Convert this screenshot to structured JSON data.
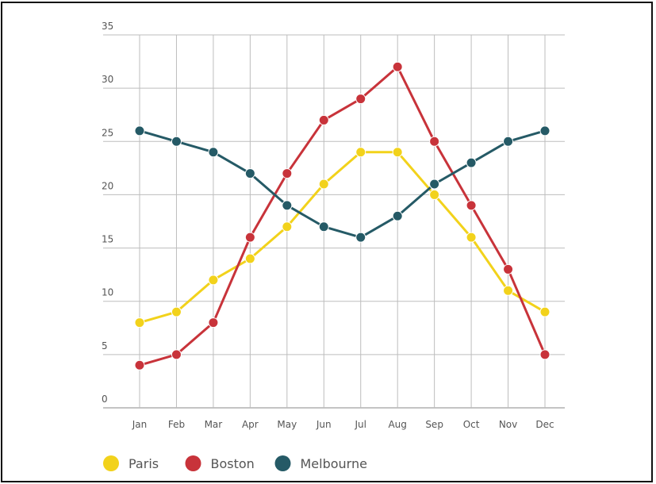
{
  "chart_data": {
    "type": "line",
    "title": "",
    "xlabel": "",
    "ylabel": "",
    "categories": [
      "Jan",
      "Feb",
      "Mar",
      "Apr",
      "May",
      "Jun",
      "Jul",
      "Aug",
      "Sep",
      "Oct",
      "Nov",
      "Dec"
    ],
    "ylim": [
      0,
      35
    ],
    "yticks": [
      "0",
      "5",
      "10",
      "15",
      "20",
      "25",
      "30",
      "35"
    ],
    "grid": true,
    "legend_position": "bottom-left",
    "series": [
      {
        "name": "Paris",
        "color": "#f2d21b",
        "values": [
          8,
          9,
          12,
          14,
          17,
          21,
          24,
          24,
          20,
          16,
          11,
          9
        ]
      },
      {
        "name": "Boston",
        "color": "#c8333a",
        "values": [
          4,
          5,
          8,
          16,
          22,
          27,
          29,
          32,
          25,
          19,
          13,
          5
        ]
      },
      {
        "name": "Melbourne",
        "color": "#255a66",
        "values": [
          26,
          25,
          24,
          22,
          19,
          17,
          16,
          18,
          21,
          23,
          25,
          26
        ]
      }
    ]
  }
}
